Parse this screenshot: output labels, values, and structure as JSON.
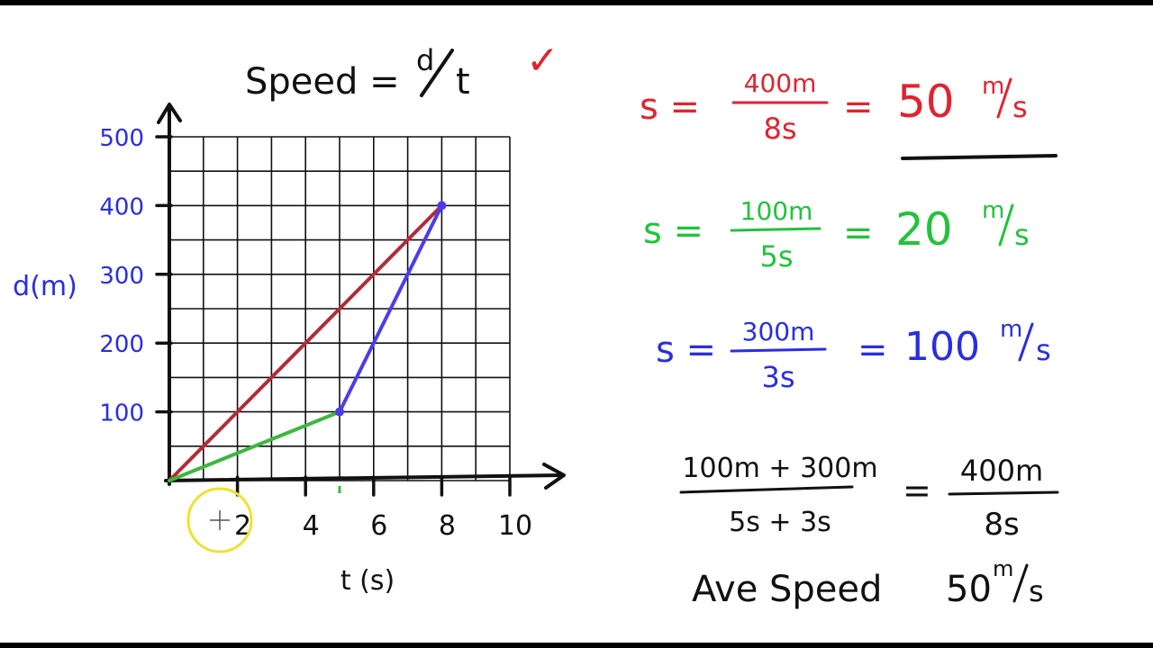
{
  "colors": {
    "ink": "#111111",
    "red": "#e0242f",
    "green": "#22c33a",
    "blue": "#2a2ee0",
    "graph_red": "#b42a38",
    "graph_green": "#3cb83c",
    "graph_blue": "#4b3de8",
    "cursor_ring": "#f0e22c"
  },
  "formula": {
    "text": "Speed =",
    "num": "d",
    "den": "t",
    "check": "✓"
  },
  "chart_data": {
    "type": "line",
    "xlabel": "t (s)",
    "ylabel": "d(m)",
    "xlim": [
      0,
      10
    ],
    "ylim": [
      0,
      500
    ],
    "grid": true,
    "x_ticks": [
      {
        "value": 2,
        "label": "2"
      },
      {
        "value": 4,
        "label": "4"
      },
      {
        "value": 6,
        "label": "6"
      },
      {
        "value": 8,
        "label": "8"
      },
      {
        "value": 10,
        "label": "10"
      }
    ],
    "y_ticks": [
      {
        "value": 100,
        "label": "100"
      },
      {
        "value": 200,
        "label": "200"
      },
      {
        "value": 300,
        "label": "300"
      },
      {
        "value": 400,
        "label": "400"
      },
      {
        "value": 500,
        "label": "500"
      }
    ],
    "series": [
      {
        "color": "red",
        "points": [
          [
            0,
            0
          ],
          [
            8,
            400
          ]
        ]
      },
      {
        "color": "green",
        "points": [
          [
            0,
            0
          ],
          [
            5,
            100
          ]
        ]
      },
      {
        "color": "blue",
        "points": [
          [
            5,
            100
          ],
          [
            8,
            400
          ]
        ]
      }
    ],
    "markers": [
      [
        5,
        100
      ],
      [
        8,
        400
      ]
    ]
  },
  "equations": {
    "red": {
      "lhs": "s =",
      "num": "400m",
      "den": "8s",
      "eq": "=",
      "value": "50",
      "unit_num": "m",
      "unit_den": "s"
    },
    "green": {
      "lhs": "s =",
      "num": "100m",
      "den": "5s",
      "eq": "=",
      "value": "20",
      "unit_num": "m",
      "unit_den": "s"
    },
    "blue": {
      "lhs": "s =",
      "num": "300m",
      "den": "3s",
      "eq": "=",
      "value": "100",
      "unit_num": "m",
      "unit_den": "s"
    }
  },
  "average": {
    "num_left": "100m + 300m",
    "den_left": "5s + 3s",
    "eq": "=",
    "num_right": "400m",
    "den_right": "8s",
    "result_label": "Ave Speed",
    "result_value": "50",
    "result_unit_num": "m",
    "result_unit_den": "s"
  }
}
